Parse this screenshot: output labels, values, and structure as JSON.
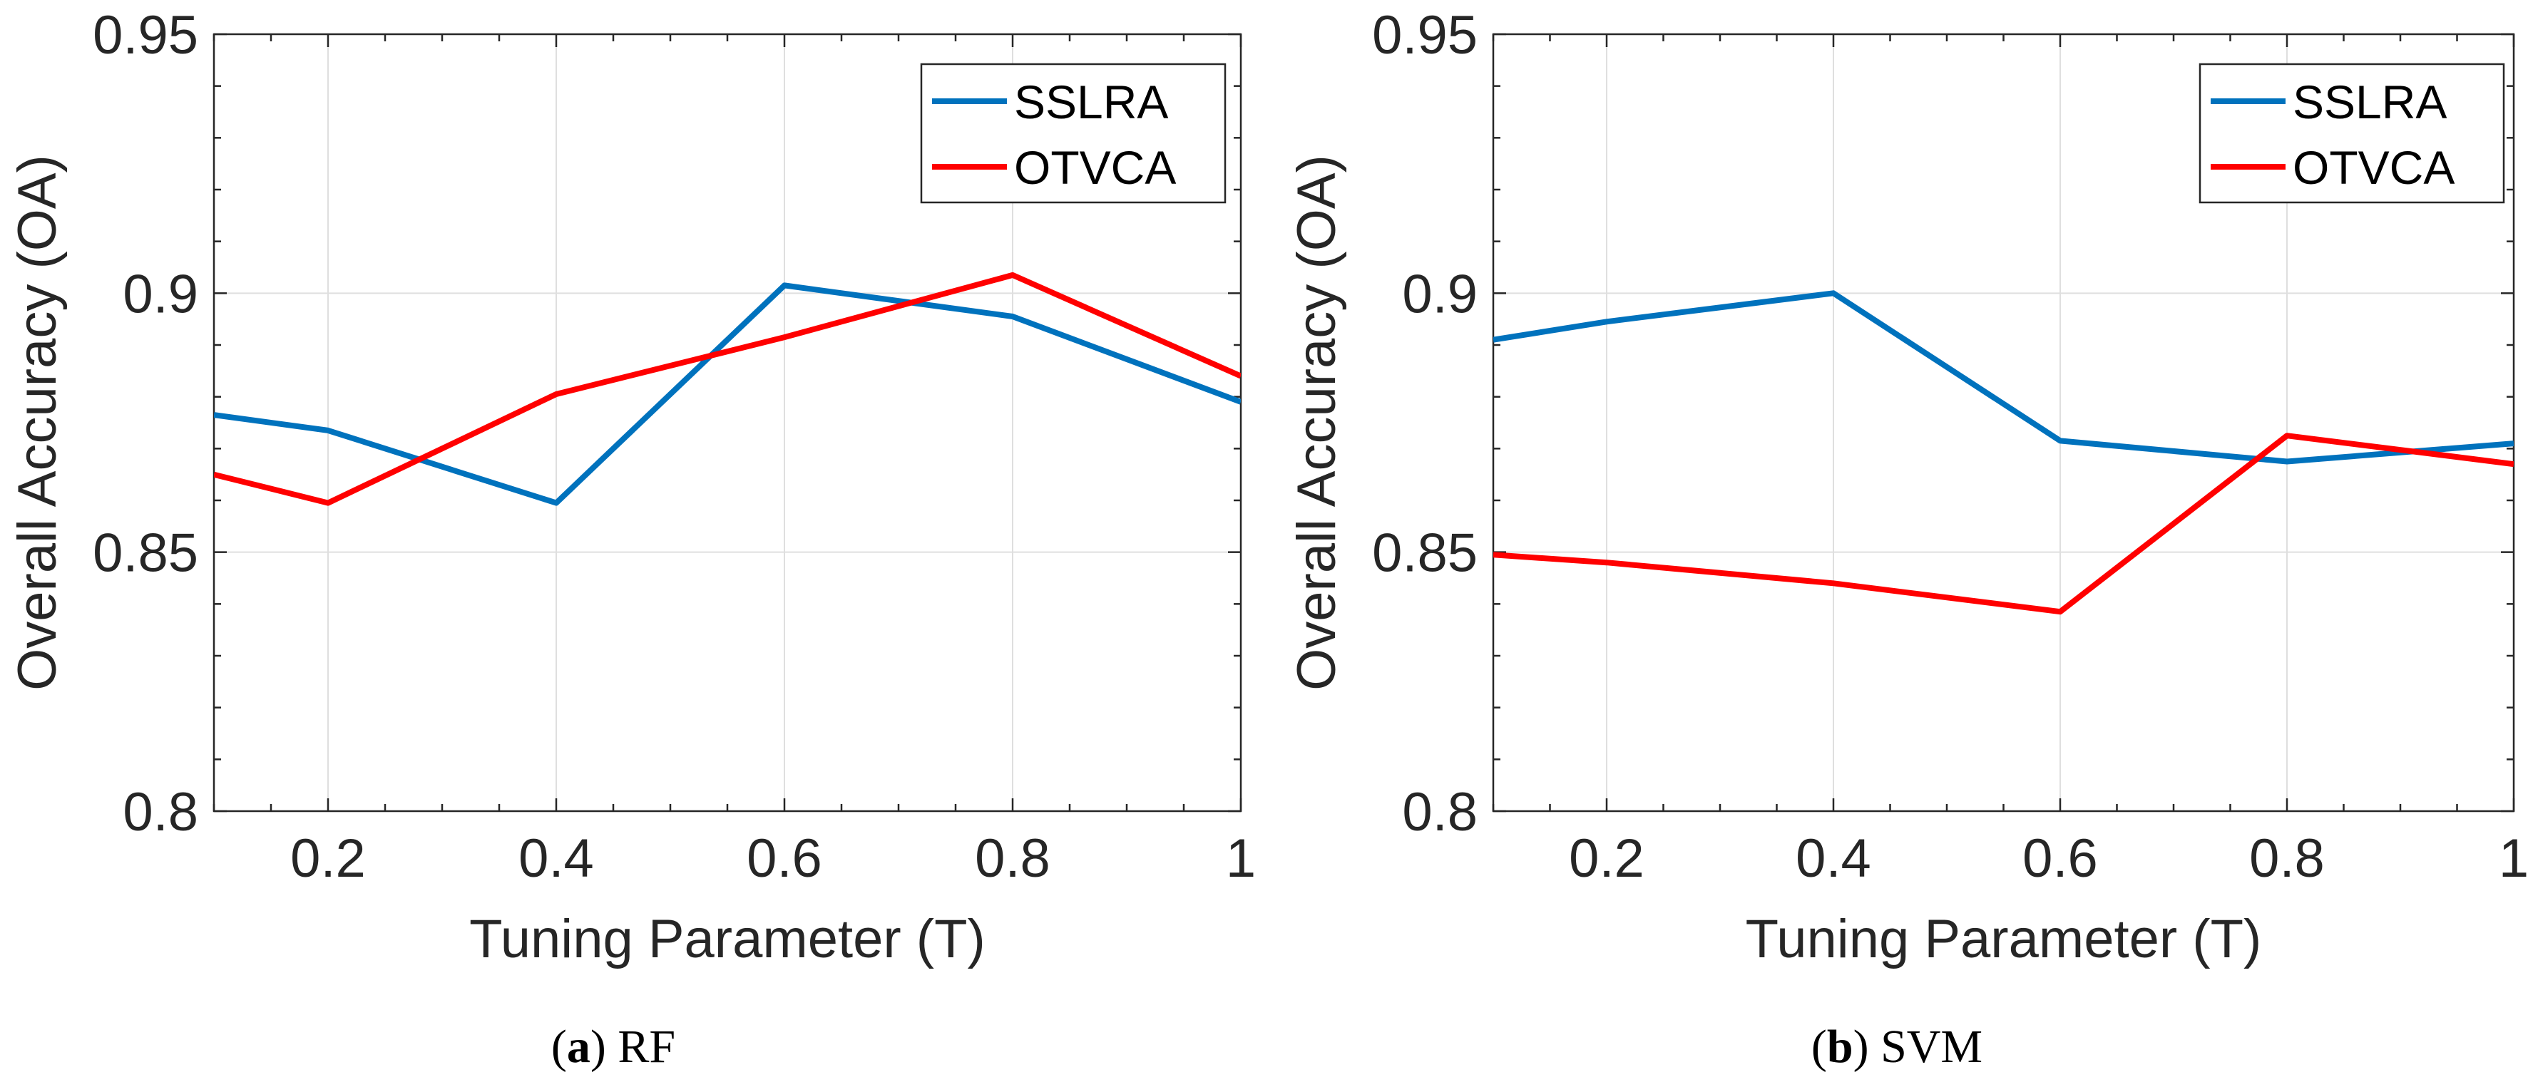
{
  "chart_data": [
    {
      "type": "line",
      "panel_letter": "a",
      "caption": "RF",
      "xlabel": "Tuning Parameter (T)",
      "ylabel": "Overall Accuracy (OA)",
      "xlim": [
        0.1,
        1
      ],
      "ylim": [
        0.8,
        0.95
      ],
      "xticks": [
        0.2,
        0.4,
        0.6,
        0.8,
        1
      ],
      "xtick_labels": [
        "0.2",
        "0.4",
        "0.6",
        "0.8",
        "1"
      ],
      "yticks": [
        0.8,
        0.85,
        0.9,
        0.95
      ],
      "ytick_labels": [
        "0.8",
        "0.85",
        "0.9",
        "0.95"
      ],
      "grid": true,
      "legend_position": "top-right",
      "x": [
        0.1,
        0.2,
        0.4,
        0.6,
        0.8,
        1
      ],
      "series": [
        {
          "name": "SSLRA",
          "color": "#0072BD",
          "values": [
            0.8765,
            0.8735,
            0.8595,
            0.9015,
            0.8955,
            0.879
          ]
        },
        {
          "name": "OTVCA",
          "color": "#FF0000",
          "values": [
            0.865,
            0.8595,
            0.8805,
            0.8915,
            0.9035,
            0.884
          ]
        }
      ]
    },
    {
      "type": "line",
      "panel_letter": "b",
      "caption": "SVM",
      "xlabel": "Tuning Parameter (T)",
      "ylabel": "Overall Accuracy (OA)",
      "xlim": [
        0.1,
        1
      ],
      "ylim": [
        0.8,
        0.95
      ],
      "xticks": [
        0.2,
        0.4,
        0.6,
        0.8,
        1
      ],
      "xtick_labels": [
        "0.2",
        "0.4",
        "0.6",
        "0.8",
        "1"
      ],
      "yticks": [
        0.8,
        0.85,
        0.9,
        0.95
      ],
      "ytick_labels": [
        "0.8",
        "0.85",
        "0.9",
        "0.95"
      ],
      "grid": true,
      "legend_position": "top-right",
      "x": [
        0.1,
        0.2,
        0.4,
        0.6,
        0.8,
        1
      ],
      "series": [
        {
          "name": "SSLRA",
          "color": "#0072BD",
          "values": [
            0.891,
            0.8945,
            0.9,
            0.8715,
            0.8675,
            0.871
          ]
        },
        {
          "name": "OTVCA",
          "color": "#FF0000",
          "values": [
            0.8495,
            0.848,
            0.844,
            0.8385,
            0.8725,
            0.867
          ]
        }
      ]
    }
  ]
}
